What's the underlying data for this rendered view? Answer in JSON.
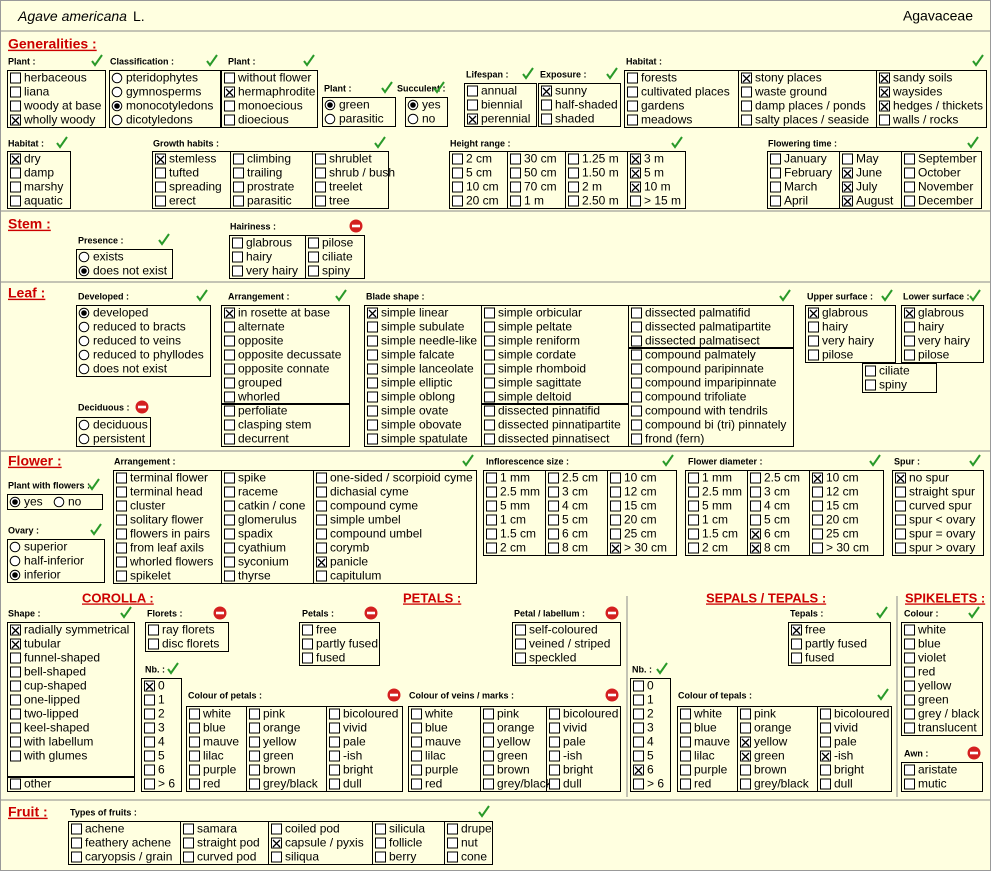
{
  "header": {
    "species": "Agave americana",
    "author": "L.",
    "family": "Agavaceae"
  },
  "sections": [
    {
      "title": "Generalities :",
      "groups": [
        {
          "title": "Plant :",
          "mark": "check",
          "columns": [
            [
              "herbaceous",
              "liana",
              "woody at base",
              {
                "label": "wholly woody",
                "checked": true
              }
            ]
          ]
        },
        {
          "title": "Classification :",
          "mark": "check",
          "input": "radio",
          "columns": [
            [
              "pteridophytes",
              "gymnosperms",
              {
                "label": "monocotyledons",
                "checked": true
              },
              "dicotyledons"
            ]
          ]
        },
        {
          "title": "Plant :",
          "mark": "check",
          "columns": [
            [
              "without flower",
              {
                "label": "hermaphrodite",
                "checked": true
              },
              "monoecious",
              "dioecious"
            ]
          ]
        },
        {
          "title": "Plant :",
          "mark": "check",
          "input": "radio",
          "columns": [
            [
              {
                "label": "green",
                "checked": true
              },
              "parasitic"
            ]
          ]
        },
        {
          "title": "Succulent :",
          "mark": "check",
          "input": "radio",
          "columns": [
            [
              {
                "label": "yes",
                "checked": true
              },
              "no"
            ]
          ]
        },
        {
          "title": "Lifespan :",
          "mark": "check",
          "columns": [
            [
              "annual",
              "biennial",
              {
                "label": "perennial",
                "checked": true
              }
            ]
          ]
        },
        {
          "title": "Exposure :",
          "mark": "check",
          "columns": [
            [
              {
                "label": "sunny",
                "checked": true
              },
              "half-shaded",
              "shaded"
            ]
          ]
        },
        {
          "title": "Habitat :",
          "mark": "check",
          "columns": [
            [
              "forests",
              "cultivated places",
              "gardens",
              "meadows"
            ],
            [
              {
                "label": "stony places",
                "checked": true
              },
              "waste ground",
              "damp places / ponds",
              "salty places / seaside"
            ],
            [
              {
                "label": "sandy soils",
                "checked": true
              },
              {
                "label": "waysides",
                "checked": true
              },
              {
                "label": "hedges / thickets",
                "checked": true
              },
              "walls / rocks"
            ]
          ]
        },
        {
          "title": "Habitat :",
          "mark": "check",
          "columns": [
            [
              {
                "label": "dry",
                "checked": true
              },
              "damp",
              "marshy",
              "aquatic"
            ]
          ]
        },
        {
          "title": "Growth habits :",
          "mark": "check",
          "columns": [
            [
              {
                "label": "stemless",
                "checked": true
              },
              "tufted",
              "spreading",
              "erect"
            ],
            [
              "climbing",
              "trailing",
              "prostrate",
              "parasitic"
            ],
            [
              "shrublet",
              "shrub / bush",
              "treelet",
              "tree"
            ]
          ]
        },
        {
          "title": "Height range :",
          "mark": "check",
          "columns": [
            [
              "2 cm",
              "5 cm",
              "10 cm",
              "20 cm"
            ],
            [
              "30 cm",
              "50 cm",
              "70 cm",
              "1 m"
            ],
            [
              "1.25 m",
              "1.50 m",
              "2 m",
              "2.50 m"
            ],
            [
              {
                "label": "3 m",
                "checked": true
              },
              {
                "label": "5 m",
                "checked": true
              },
              {
                "label": "10 m",
                "checked": true
              },
              "> 15 m"
            ]
          ]
        },
        {
          "title": "Flowering time :",
          "mark": "check",
          "columns": [
            [
              "January",
              "February",
              "March",
              "April"
            ],
            [
              "May",
              {
                "label": "June",
                "checked": true
              },
              {
                "label": "July",
                "checked": true
              },
              {
                "label": "August",
                "checked": true
              }
            ],
            [
              "September",
              "October",
              "November",
              "December"
            ]
          ]
        }
      ]
    },
    {
      "title": "Stem :",
      "groups": [
        {
          "title": "Presence :",
          "mark": "check",
          "input": "radio",
          "columns": [
            [
              "exists",
              {
                "label": "does not exist",
                "checked": true
              }
            ]
          ]
        },
        {
          "title": "Hairiness :",
          "mark": "stop",
          "columns": [
            [
              "glabrous",
              "hairy",
              "very hairy"
            ],
            [
              "pilose",
              "ciliate",
              "spiny"
            ]
          ]
        }
      ]
    },
    {
      "title": "Leaf :",
      "groups": [
        {
          "title": "Developed :",
          "mark": "check",
          "input": "radio",
          "columns": [
            [
              {
                "label": "developed",
                "checked": true
              },
              "reduced to bracts",
              "reduced to veins",
              "reduced to phyllodes",
              "does not exist"
            ]
          ]
        },
        {
          "title": "Deciduous :",
          "mark": "stop",
          "input": "radio",
          "columns": [
            [
              "deciduous",
              "persistent"
            ]
          ]
        },
        {
          "title": "Arrangement :",
          "mark": "check",
          "columns": [
            [
              {
                "label": "in rosette at base",
                "checked": true
              },
              "alternate",
              "opposite",
              "opposite decussate",
              "opposite connate",
              "grouped",
              "whorled"
            ],
            [
              "perfoliate",
              "clasping stem",
              "decurrent"
            ]
          ]
        },
        {
          "title": "Blade shape :",
          "mark": "check",
          "columns": [
            [
              {
                "label": "simple linear",
                "checked": true
              },
              "simple subulate",
              "simple needle-like",
              "simple falcate",
              "simple lanceolate",
              "simple elliptic",
              "simple oblong",
              "simple ovate",
              "simple obovate",
              "simple spatulate"
            ],
            [
              "simple orbicular",
              "simple peltate",
              "simple reniform",
              "simple cordate",
              "simple rhomboid",
              "simple sagittate",
              "simple deltoid"
            ],
            [
              "dissected pinnatifid",
              "dissected pinnatipartite",
              "dissected pinnatisect"
            ],
            [
              "dissected palmatifid",
              "dissected palmatipartite",
              "dissected palmatisect"
            ],
            [
              "compound palmately",
              "compound paripinnate",
              "compound imparipinnate",
              "compound trifoliate",
              "compound with tendrils",
              "compound bi (tri) pinnately",
              "frond  (fern)"
            ]
          ]
        },
        {
          "title": "Upper surface :",
          "mark": "check",
          "columns": [
            [
              {
                "label": "glabrous",
                "checked": true
              },
              "hairy",
              "very hairy",
              "pilose"
            ]
          ]
        },
        {
          "title": "Lower surface :",
          "mark": "check",
          "columns": [
            [
              {
                "label": "glabrous",
                "checked": true
              },
              "hairy",
              "very hairy",
              "pilose"
            ]
          ]
        },
        {
          "columns": [
            [
              "ciliate",
              "spiny"
            ]
          ]
        }
      ]
    },
    {
      "title": "Flower :",
      "subtitles": [
        "COROLLA :",
        "PETALS :",
        "SEPALS / TEPALS :",
        "SPIKELETS :"
      ],
      "groups": [
        {
          "title": "Plant with flowers :",
          "mark": "check",
          "input": "radio",
          "columns": [
            [
              {
                "label": "yes",
                "checked": true
              },
              "no"
            ]
          ]
        },
        {
          "title": "Ovary :",
          "mark": "check",
          "input": "radio",
          "columns": [
            [
              "superior",
              "half-inferior",
              {
                "label": "inferior",
                "checked": true
              }
            ]
          ]
        },
        {
          "title": "Arrangement :",
          "mark": "check",
          "columns": [
            [
              "terminal flower",
              "terminal head",
              "cluster",
              "solitary flower",
              "flowers in pairs",
              "from leaf axils",
              "whorled flowers",
              "spikelet"
            ],
            [
              "spike",
              "raceme",
              "catkin / cone",
              "glomerulus",
              "spadix",
              "cyathium",
              "syconium",
              "thyrse"
            ],
            [
              "one-sided / scorpioid cyme",
              "dichasial cyme",
              "compound cyme",
              "simple umbel",
              "compound umbel",
              "corymb",
              {
                "label": "panicle",
                "checked": true
              },
              "capitulum"
            ]
          ]
        },
        {
          "title": "Inflorescence size :",
          "mark": "check",
          "columns": [
            [
              "1 mm",
              "2.5 mm",
              "5 mm",
              "1 cm",
              "1.5 cm",
              "2 cm"
            ],
            [
              "2.5 cm",
              "3 cm",
              "4 cm",
              "5 cm",
              "6 cm",
              "8 cm"
            ],
            [
              "10 cm",
              "12 cm",
              "15 cm",
              "20 cm",
              "25 cm",
              {
                "label": "> 30 cm",
                "checked": true
              }
            ]
          ]
        },
        {
          "title": "Flower diameter :",
          "mark": "check",
          "columns": [
            [
              "1 mm",
              "2.5 mm",
              "5 mm",
              "1 cm",
              "1.5 cm",
              "2 cm"
            ],
            [
              "2.5 cm",
              "3 cm",
              "4 cm",
              "5 cm",
              {
                "label": "6 cm",
                "checked": true
              },
              {
                "label": "8 cm",
                "checked": true
              }
            ],
            [
              {
                "label": "10 cm",
                "checked": true
              },
              "12 cm",
              "15 cm",
              "20 cm",
              "25 cm",
              "> 30 cm"
            ]
          ]
        },
        {
          "title": "Spur :",
          "mark": "check",
          "columns": [
            [
              {
                "label": "no spur",
                "checked": true
              },
              "straight spur",
              "curved spur",
              "spur < ovary",
              "spur = ovary",
              "spur > ovary"
            ]
          ]
        },
        {
          "title": "Shape :",
          "mark": "check",
          "columns": [
            [
              {
                "label": "radially symmetrical",
                "checked": true
              },
              {
                "label": "tubular",
                "checked": true
              },
              "funnel-shaped",
              "bell-shaped",
              "cup-shaped",
              "one-lipped",
              "two-lipped",
              "keel-shaped",
              "with labellum",
              "with glumes"
            ],
            [
              "other"
            ]
          ]
        },
        {
          "title": "Florets :",
          "mark": "stop",
          "columns": [
            [
              "ray florets",
              "disc florets"
            ]
          ]
        },
        {
          "title": "Nb. :",
          "mark": "check",
          "columns": [
            [
              {
                "label": "0",
                "checked": true
              },
              "1",
              "2",
              "3",
              "4",
              "5",
              "6",
              "> 6"
            ]
          ]
        },
        {
          "title": "Colour of petals :",
          "mark": "stop",
          "columns": [
            [
              "white",
              "blue",
              "mauve",
              "lilac",
              "purple",
              "red"
            ],
            [
              "pink",
              "orange",
              "yellow",
              "green",
              "brown",
              "grey/black"
            ],
            [
              "bicoloured",
              "vivid",
              "pale",
              "-ish",
              "bright",
              "dull"
            ]
          ]
        },
        {
          "title": "Petals :",
          "mark": "stop",
          "columns": [
            [
              "free",
              "partly fused",
              "fused"
            ]
          ]
        },
        {
          "title": "Petal / labellum :",
          "mark": "stop",
          "columns": [
            [
              "self-coloured",
              "veined / striped",
              "speckled"
            ]
          ]
        },
        {
          "title": "Colour of veins / marks :",
          "mark": "stop",
          "columns": [
            [
              "white",
              "blue",
              "mauve",
              "lilac",
              "purple",
              "red"
            ],
            [
              "pink",
              "orange",
              "yellow",
              "green",
              "brown",
              "grey/black"
            ],
            [
              "bicoloured",
              "vivid",
              "pale",
              "-ish",
              "bright",
              "dull"
            ]
          ]
        },
        {
          "title": "Nb. :",
          "mark": "check",
          "columns": [
            [
              "0",
              "1",
              "2",
              "3",
              "4",
              "5",
              {
                "label": "6",
                "checked": true
              },
              "> 6"
            ]
          ]
        },
        {
          "title": "Tepals :",
          "mark": "check",
          "columns": [
            [
              {
                "label": "free",
                "checked": true
              },
              "partly fused",
              "fused"
            ]
          ]
        },
        {
          "title": "Colour of tepals :",
          "mark": "check",
          "columns": [
            [
              "white",
              "blue",
              "mauve",
              "lilac",
              "purple",
              "red"
            ],
            [
              "pink",
              "orange",
              {
                "label": "yellow",
                "checked": true
              },
              {
                "label": "green",
                "checked": true
              },
              "brown",
              "grey/black"
            ],
            [
              "bicoloured",
              "vivid",
              "pale",
              {
                "label": "-ish",
                "checked": true
              },
              "bright",
              "dull"
            ]
          ]
        },
        {
          "title": "Colour :",
          "mark": "check",
          "columns": [
            [
              "white",
              "blue",
              "violet",
              "red",
              "yellow",
              "green",
              "grey / black",
              "translucent"
            ]
          ]
        },
        {
          "title": "Awn :",
          "mark": "stop",
          "columns": [
            [
              "aristate",
              "mutic"
            ]
          ]
        }
      ]
    },
    {
      "title": "Fruit :",
      "groups": [
        {
          "title": "Types of fruits :",
          "mark": "check",
          "columns": [
            [
              "achene",
              "feathery achene",
              "caryopsis / grain"
            ],
            [
              "samara",
              "straight pod",
              "curved pod"
            ],
            [
              "coiled pod",
              {
                "label": "capsule / pyxis",
                "checked": true
              },
              "siliqua"
            ],
            [
              "silicula",
              "follicle",
              "berry"
            ],
            [
              "drupe",
              "nut",
              "cone"
            ]
          ]
        }
      ]
    }
  ]
}
